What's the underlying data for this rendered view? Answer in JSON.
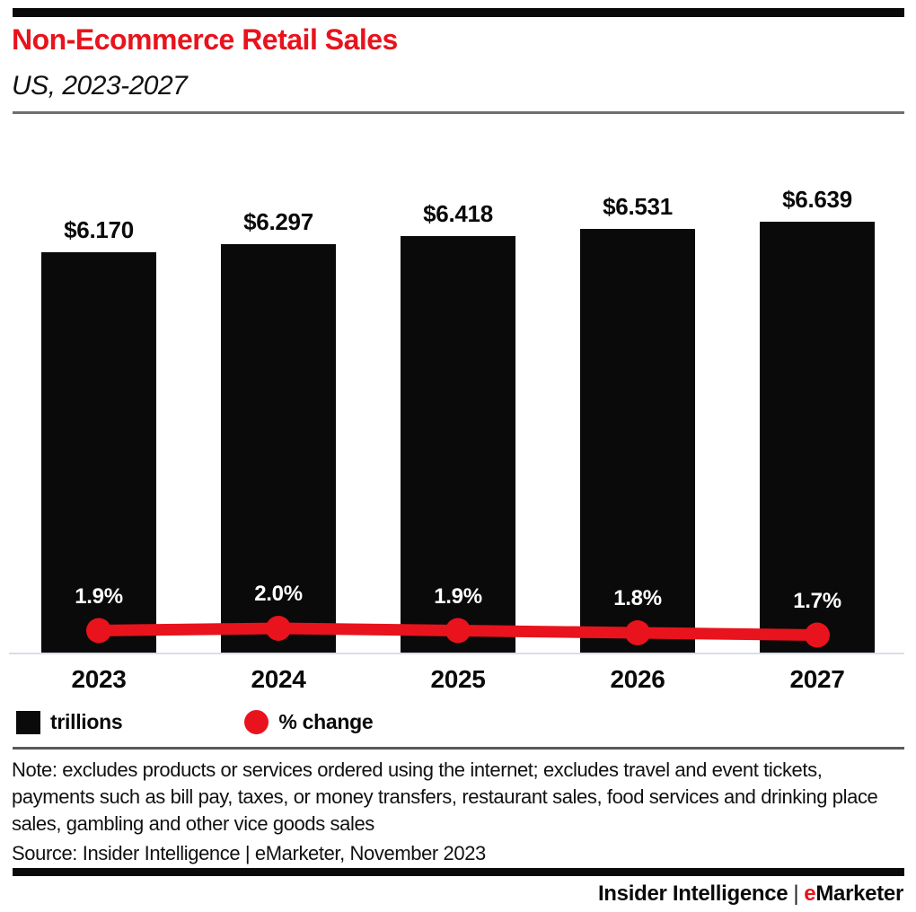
{
  "header": {
    "title": "Non-Ecommerce Retail Sales",
    "subtitle": "US, 2023-2027"
  },
  "chart_data": {
    "type": "bar",
    "subtype": "bar-with-line-overlay",
    "title": "Non-Ecommerce Retail Sales, US, 2023-2027",
    "categories": [
      "2023",
      "2024",
      "2025",
      "2026",
      "2027"
    ],
    "series": [
      {
        "name": "trillions",
        "type": "bar",
        "unit": "$ trillions",
        "values": [
          6.17,
          6.297,
          6.418,
          6.531,
          6.639
        ],
        "labels": [
          "$6.170",
          "$6.297",
          "$6.418",
          "$6.531",
          "$6.639"
        ],
        "color": "#0a0a0a"
      },
      {
        "name": "% change",
        "type": "line",
        "unit": "%",
        "values": [
          1.9,
          2.0,
          1.9,
          1.8,
          1.7
        ],
        "labels": [
          "1.9%",
          "2.0%",
          "1.9%",
          "1.8%",
          "1.7%"
        ],
        "color": "#e8131c"
      }
    ],
    "xlabel": "",
    "ylabel": "",
    "ylim": [
      0,
      7
    ],
    "grid": false,
    "legend_position": "bottom-left"
  },
  "legend": {
    "items": [
      {
        "label": "trillions",
        "swatch": "square",
        "color": "#0a0a0a"
      },
      {
        "label": "% change",
        "swatch": "circle",
        "color": "#e8131c"
      }
    ]
  },
  "note": "Note: excludes products or services ordered using the internet; excludes travel and event tickets, payments such as bill pay, taxes, or money transfers, restaurant sales, food services and drinking place sales, gambling and other vice goods sales",
  "source": "Source: Insider Intelligence | eMarketer, November 2023",
  "footer": {
    "left": "Insider Intelligence",
    "separator": "|",
    "emarketer_e": "e",
    "emarketer_rest": "Marketer"
  },
  "colors": {
    "accent_red": "#e8131c",
    "bar_black": "#0a0a0a",
    "baseline": "#d9dde8",
    "header_divider": "#6f6f6f",
    "legend_divider": "#5a5a5a"
  }
}
